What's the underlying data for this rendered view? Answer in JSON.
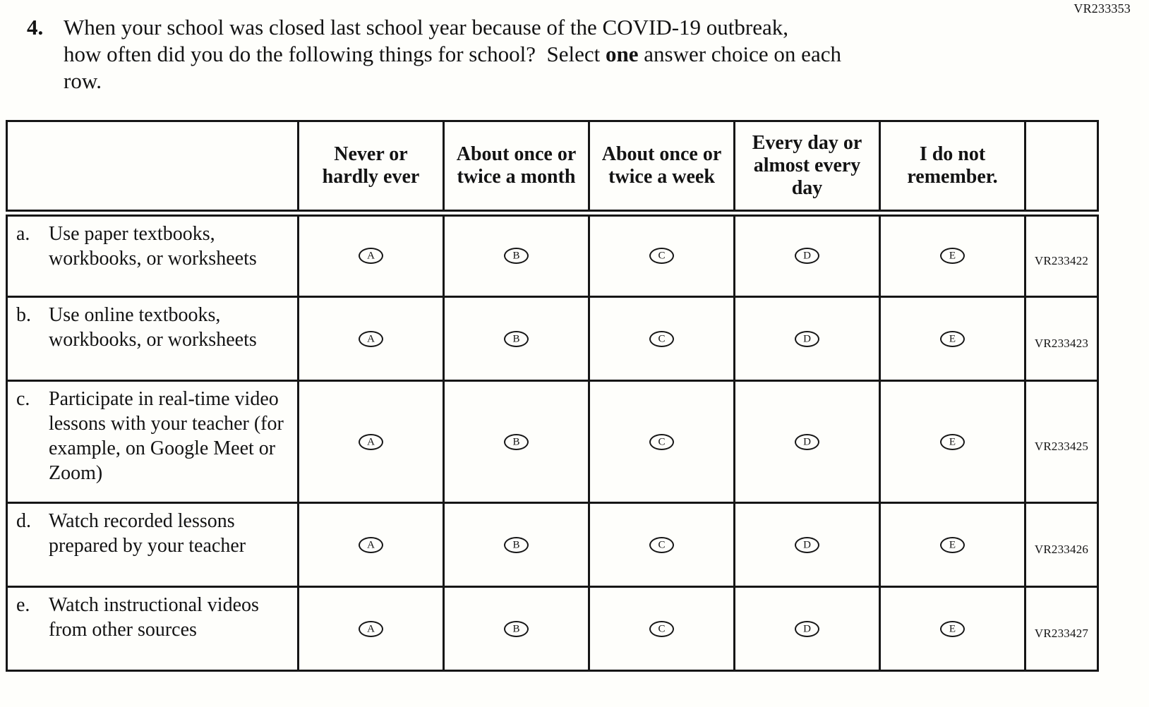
{
  "page": {
    "code_top_right": "VR233353"
  },
  "question": {
    "number": "4.",
    "line1": "When your school was closed last school year because of the COVID-19 outbreak,",
    "line2_pre": "how often did you do the following things for school? Select ",
    "line2_bold": "one",
    "line2_post": " answer choice on each",
    "line3": "row."
  },
  "table": {
    "columns": [
      "Never or hardly ever",
      "About once or twice a month",
      "About once or twice a week",
      "Every day or almost every day",
      "I do not remember."
    ],
    "choices": [
      "A",
      "B",
      "C",
      "D",
      "E"
    ],
    "rows": [
      {
        "letter": "a.",
        "label": "Use paper textbooks, workbooks, or worksheets",
        "code": "VR233422"
      },
      {
        "letter": "b.",
        "label": "Use online textbooks, workbooks, or worksheets",
        "code": "VR233423"
      },
      {
        "letter": "c.",
        "label": "Participate in real-time video lessons with your teacher (for example, on Google Meet or Zoom)",
        "code": "VR233425"
      },
      {
        "letter": "d.",
        "label": "Watch recorded lessons prepared by your teacher",
        "code": "VR233426"
      },
      {
        "letter": "e.",
        "label": "Watch instructional videos from other sources",
        "code": "VR233427"
      }
    ]
  },
  "colors": {
    "text": "#131313",
    "border": "#161616",
    "background": "#fefefb"
  }
}
